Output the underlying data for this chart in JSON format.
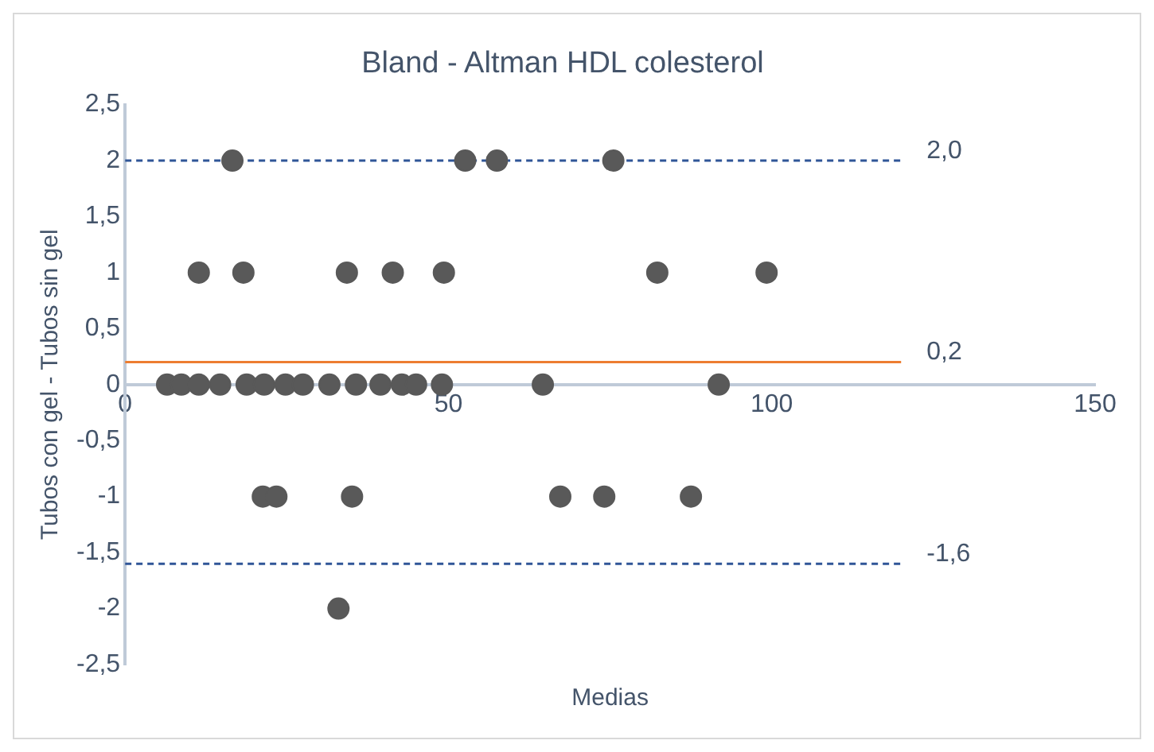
{
  "chart_data": {
    "type": "scatter",
    "title": "Bland - Altman HDL colesterol",
    "xlabel": "Medias",
    "ylabel": "Tubos con gel - Tubos sin gel",
    "legend": false,
    "grid": false,
    "marker": "circle",
    "xlim": [
      0,
      150
    ],
    "xticks": [
      0,
      50,
      100,
      150
    ],
    "ylim": [
      -2.5,
      2.5
    ],
    "yticks": [
      {
        "value": -2.5,
        "label": "-2,5"
      },
      -2,
      {
        "value": -1.5,
        "label": "-1,5"
      },
      -1,
      {
        "value": -0.5,
        "label": "-0,5"
      },
      0,
      {
        "value": 0.5,
        "label": "0,5"
      },
      1,
      {
        "value": 1.5,
        "label": "1,5"
      },
      2,
      {
        "value": 2.5,
        "label": "2,5"
      }
    ],
    "series": [
      {
        "color": "#595959",
        "x": [
          16.6,
          52.6,
          57.5,
          75.5,
          11.4,
          18.3,
          34.3,
          41.4,
          49.3,
          82.3,
          99.2,
          6.5,
          8.7,
          11.4,
          14.7,
          18.8,
          21.5,
          24.8,
          27.5,
          31.6,
          35.7,
          39.5,
          42.8,
          45,
          49,
          64.6,
          91.8,
          21.3,
          23.4,
          35.1,
          67.3,
          74.1,
          87.5,
          33
        ],
        "values": [
          2,
          2,
          2,
          2,
          1,
          1,
          1,
          1,
          1,
          1,
          1,
          0,
          0,
          0,
          0,
          0,
          0,
          0,
          0,
          0,
          0,
          0,
          0,
          0,
          0,
          0,
          0,
          -1,
          -1,
          -1,
          -1,
          -1,
          -1,
          -2
        ]
      },
      {
        "type": "line",
        "name": "2,0",
        "color": "#2f5597",
        "line_style": "dashed",
        "marker": "none",
        "x": [
          0,
          120
        ],
        "values": [
          2,
          2
        ]
      },
      {
        "type": "line",
        "name": "0,2",
        "color": "#ed7d31",
        "line_style": "solid",
        "marker": "none",
        "x": [
          0,
          120
        ],
        "values": [
          0.2,
          0.2
        ]
      },
      {
        "type": "line",
        "name": "-1,6",
        "color": "#2f5597",
        "line_style": "dashed",
        "marker": "none",
        "x": [
          0,
          120
        ],
        "values": [
          -1.6,
          -1.6
        ]
      }
    ]
  }
}
